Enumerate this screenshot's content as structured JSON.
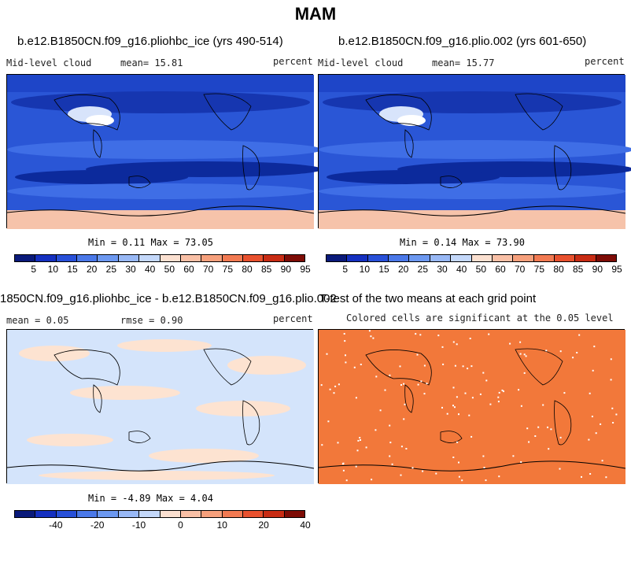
{
  "title": "MAM",
  "panels": [
    {
      "title": "b.e12.B1850CN.f09_g16.pliohbc_ice (yrs 490-514)",
      "left_label": "Mid-level cloud",
      "center_label": "mean=  15.81",
      "right_label": "percent",
      "minmax": "Min =   0.11 Max =  73.05"
    },
    {
      "title": "b.e12.B1850CN.f09_g16.plio.002 (yrs 601-650)",
      "left_label": "Mid-level cloud",
      "center_label": "mean=  15.77",
      "right_label": "percent",
      "minmax": "Min =   0.14 Max =  73.90"
    },
    {
      "title": "1850CN.f09_g16.pliohbc_ice - b.e12.B1850CN.f09_g16.plio.002",
      "left_label": "mean =   0.05",
      "center_label": "rmse =   0.90",
      "right_label": "percent",
      "minmax": "Min =  -4.89 Max =   4.04"
    },
    {
      "title": "T-test of the two means at each grid point",
      "left_label": "Colored cells are significant at the 0.05 level"
    }
  ],
  "colorbar_abs": {
    "colors": [
      "#0a1a7a",
      "#1530c0",
      "#2850d8",
      "#4a78e8",
      "#6c98f0",
      "#98b8f5",
      "#c4d8fa",
      "#fbe0d0",
      "#f9c0a6",
      "#f6a07c",
      "#f27a52",
      "#e8512e",
      "#c82c14",
      "#7e0c06"
    ],
    "labels": [
      "5",
      "10",
      "15",
      "20",
      "25",
      "30",
      "40",
      "50",
      "60",
      "70",
      "75",
      "80",
      "85",
      "90",
      "95"
    ]
  },
  "colorbar_diff": {
    "colors": [
      "#0a1a7a",
      "#1530c0",
      "#2850d8",
      "#4a78e8",
      "#6c98f0",
      "#98b8f5",
      "#c4d8fa",
      "#fbe0d0",
      "#f9c0a6",
      "#f6a07c",
      "#f27a52",
      "#e8512e",
      "#c82c14",
      "#7e0c06"
    ],
    "labels": [
      "-40",
      "-20",
      "-10",
      "0",
      "10",
      "20",
      "40"
    ]
  },
  "colors": {
    "cloud_base": "#2a56d6",
    "cloud_dark": "#0c2a9c",
    "diff_blue": "#d4e4fb",
    "diff_peach": "#fde3d1",
    "ttest": "#f2783a"
  }
}
